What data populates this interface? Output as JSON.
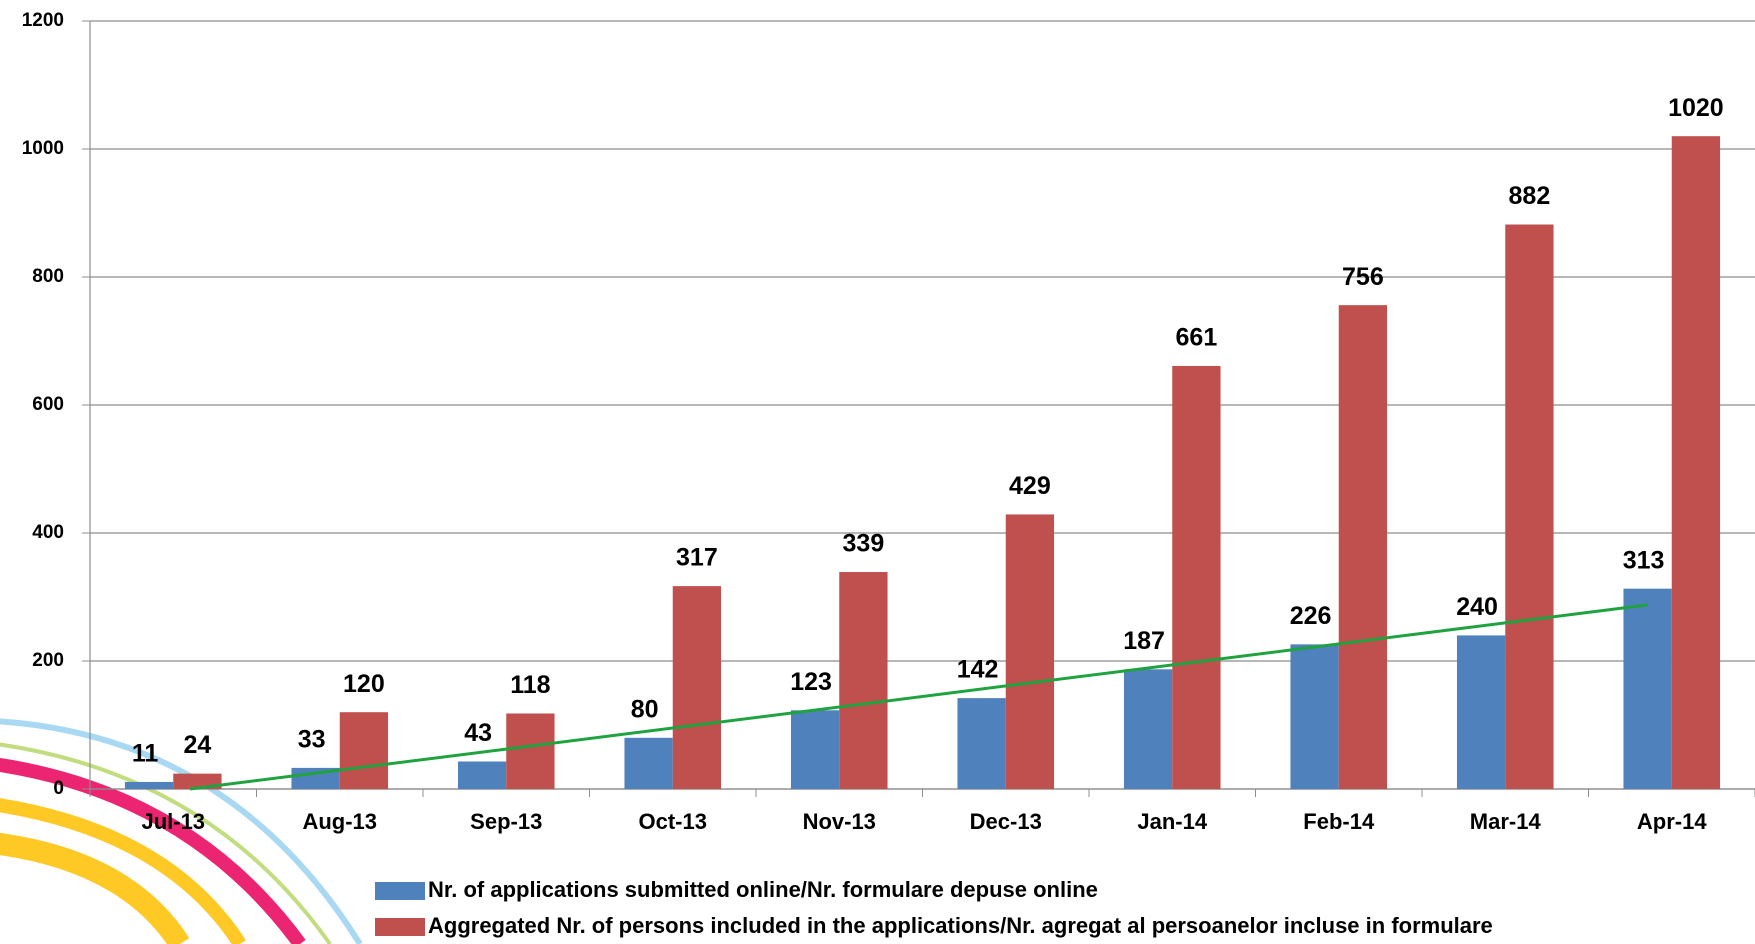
{
  "chart_data": {
    "type": "bar",
    "categories": [
      "Jul-13",
      "Aug-13",
      "Sep-13",
      "Oct-13",
      "Nov-13",
      "Dec-13",
      "Jan-14",
      "Feb-14",
      "Mar-14",
      "Apr-14"
    ],
    "series": [
      {
        "name": "Nr. of applications submitted online/Nr. formulare depuse online",
        "color": "#4f81bd",
        "values": [
          11,
          33,
          43,
          80,
          123,
          142,
          187,
          226,
          240,
          313
        ]
      },
      {
        "name": "Aggregated Nr. of persons included in the applications/Nr. agregat al persoanelor incluse in formulare",
        "color": "#c0504d",
        "values": [
          24,
          120,
          118,
          317,
          339,
          429,
          661,
          756,
          882,
          1020
        ]
      }
    ],
    "ylim": [
      0,
      1200
    ],
    "yticks": [
      0,
      200,
      400,
      600,
      800,
      1000,
      1200
    ],
    "grid": true,
    "trendline": {
      "series": 0,
      "kind": "linear",
      "color": "#1fa33f"
    },
    "legend": "bottom"
  }
}
